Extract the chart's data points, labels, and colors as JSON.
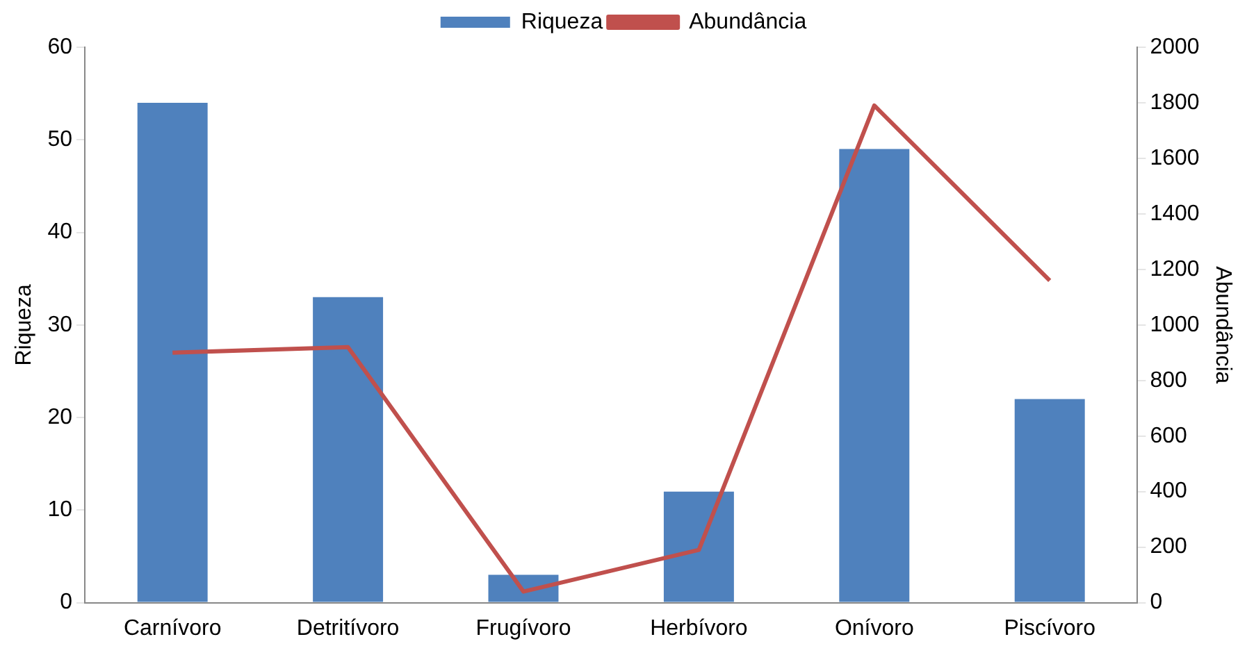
{
  "chart_data": {
    "type": "bar",
    "categories": [
      "Carnívoro",
      "Detritívoro",
      "Frugívoro",
      "Herbívoro",
      "Onívoro",
      "Piscívoro"
    ],
    "series": [
      {
        "name": "Riqueza",
        "color": "#4f81bd",
        "values": [
          54,
          33,
          3,
          12,
          49,
          22
        ]
      },
      {
        "name": "Abundância",
        "type": "line",
        "axis": "y2",
        "color": "#c0504d",
        "values": [
          900,
          920,
          40,
          190,
          1790,
          1160
        ]
      }
    ],
    "ylabel": "Riqueza",
    "y2label": "Abundância",
    "ylim": [
      0,
      60
    ],
    "yticks": [
      0,
      10,
      20,
      30,
      40,
      50,
      60
    ],
    "y2lim": [
      0,
      2000
    ],
    "y2ticks": [
      0,
      200,
      400,
      600,
      800,
      1000,
      1200,
      1400,
      1600,
      1800,
      2000
    ],
    "grid": false,
    "legend": "top",
    "marker": "none"
  }
}
